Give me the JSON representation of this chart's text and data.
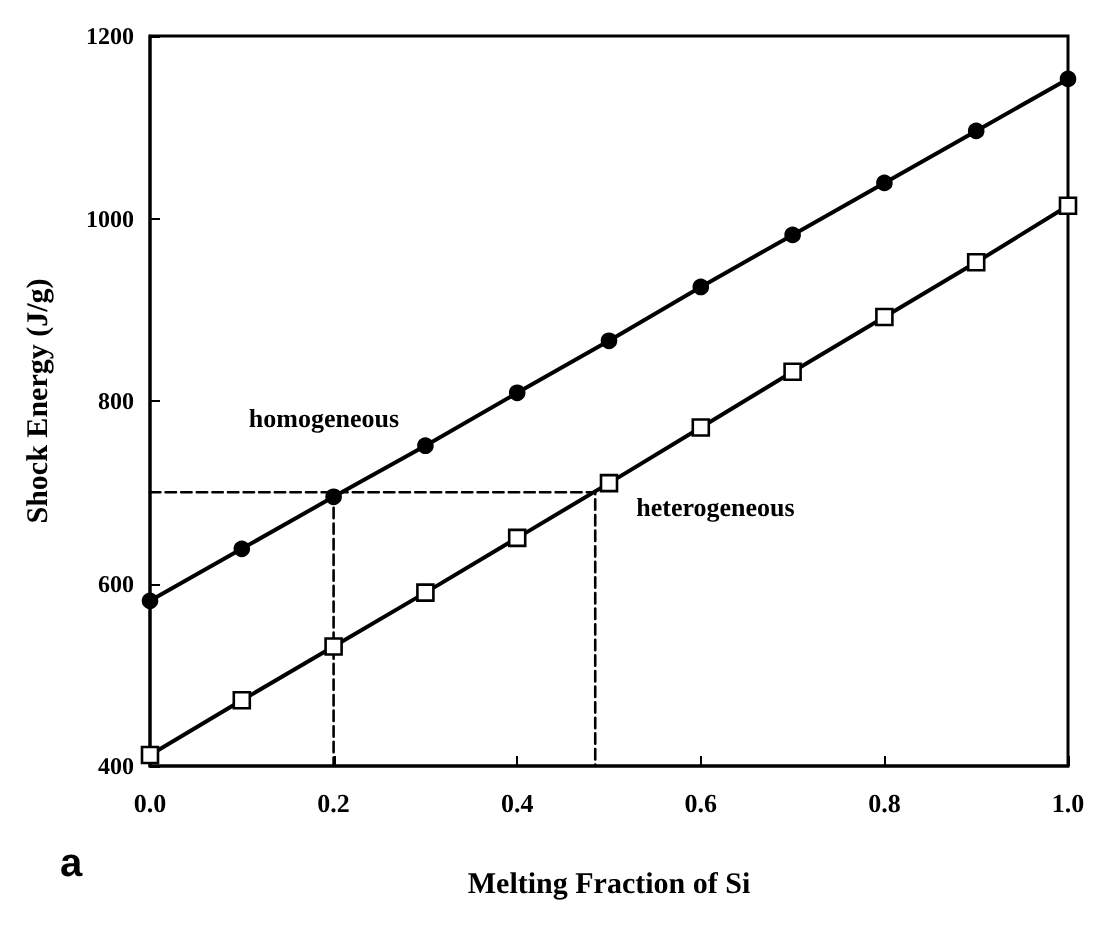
{
  "chart_data": {
    "type": "line",
    "xlabel": "Melting Fraction of Si",
    "ylabel": "Shock Energy (J/g)",
    "annotations": [
      "a"
    ],
    "x": [
      0,
      0.1,
      0.2,
      0.3,
      0.4,
      0.5,
      0.6,
      0.7,
      0.8,
      0.9,
      1.0
    ],
    "series": [
      {
        "name": "homogeneous",
        "color": "#000000",
        "marker": "circle",
        "values": [
          581,
          638,
          695,
          751,
          809,
          866,
          925,
          982,
          1039,
          1096,
          1153
        ]
      },
      {
        "name": "heterogeneous",
        "color": "#000000",
        "marker": "square",
        "values": [
          412,
          472,
          531,
          590,
          650,
          710,
          771,
          832,
          892,
          952,
          1014
        ]
      },
      {
        "color": "#000000",
        "marker": "none",
        "line_style": "dashed",
        "x": [
          0,
          0.485,
          0.485
        ],
        "values": [
          700,
          700,
          400
        ]
      },
      {
        "color": "#000000",
        "marker": "none",
        "line_style": "dashed",
        "x": [
          0.2,
          0.2
        ],
        "values": [
          700,
          400
        ]
      }
    ],
    "xlim": [
      0,
      1
    ],
    "xticks": [
      {
        "value": 0,
        "label": "0.0"
      },
      {
        "value": 0.2,
        "label": "0.2"
      },
      {
        "value": 0.4,
        "label": "0.4"
      },
      {
        "value": 0.6,
        "label": "0.6"
      },
      {
        "value": 0.8,
        "label": "0.8"
      },
      {
        "value": 1,
        "label": "1.0"
      }
    ],
    "ylim": [
      400,
      1200
    ],
    "yticks": [
      400,
      600,
      800,
      1000,
      1200
    ],
    "grid": false,
    "legend": false
  }
}
